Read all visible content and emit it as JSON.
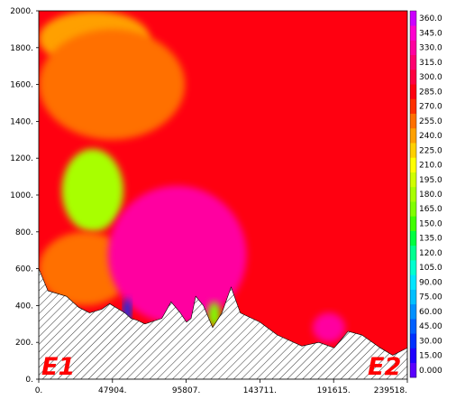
{
  "chart_data": {
    "type": "heatmap",
    "title": "",
    "xlabel": "",
    "ylabel": "",
    "xlim": [
      0,
      239518
    ],
    "ylim": [
      0,
      2000
    ],
    "x_ticks": [
      "0.",
      "47904.",
      "95807.",
      "143711.",
      "191615.",
      "239518."
    ],
    "y_ticks": [
      "0.",
      "200.",
      "400.",
      "600.",
      "800.",
      "1000.",
      "1200.",
      "1400.",
      "1600.",
      "1800.",
      "2000."
    ],
    "colorbar": {
      "range": [
        0,
        360
      ],
      "step": 15,
      "labels": [
        "0.000",
        "15.00",
        "30.00",
        "45.00",
        "60.00",
        "75.00",
        "90.00",
        "105.0",
        "120.0",
        "135.0",
        "150.0",
        "165.0",
        "180.0",
        "195.0",
        "210.0",
        "225.0",
        "240.0",
        "255.0",
        "270.0",
        "285.0",
        "300.0",
        "315.0",
        "330.0",
        "345.0",
        "360.0"
      ],
      "colors": [
        "#5a00ff",
        "#2000ff",
        "#0030ff",
        "#0060ff",
        "#0090ff",
        "#00bfff",
        "#00e5ff",
        "#00ffd0",
        "#00ff90",
        "#00ff40",
        "#40ff00",
        "#80ff00",
        "#a8ff00",
        "#d0ff00",
        "#ffff00",
        "#ffd000",
        "#ffa000",
        "#ff7000",
        "#ff3000",
        "#ff0010",
        "#ff0040",
        "#ff0070",
        "#ff00a0",
        "#ff00d0",
        "#cc00ff"
      ]
    },
    "background_value": 285,
    "features": [
      {
        "name": "upper-left-band",
        "value": 240,
        "x": [
          0,
          72000
        ],
        "y": [
          1700,
          2000
        ]
      },
      {
        "name": "upper-orange-zone",
        "value": 255,
        "x": [
          0,
          95000
        ],
        "y": [
          1300,
          1900
        ]
      },
      {
        "name": "green-core",
        "value": 180,
        "x": [
          15000,
          55000
        ],
        "y": [
          800,
          1250
        ]
      },
      {
        "name": "lower-orange-zone",
        "value": 255,
        "x": [
          0,
          60000
        ],
        "y": [
          400,
          800
        ]
      },
      {
        "name": "magenta-plume",
        "value": 330,
        "x": [
          45000,
          135000
        ],
        "y": [
          300,
          1050
        ]
      },
      {
        "name": "green-patch",
        "value": 165,
        "x": [
          110000,
          118000
        ],
        "y": [
          280,
          420
        ]
      },
      {
        "name": "blue-cells",
        "value": 30,
        "x": [
          55000,
          60000
        ],
        "y": [
          300,
          440
        ]
      },
      {
        "name": "right-magenta-patch",
        "value": 330,
        "x": [
          178000,
          199000
        ],
        "y": [
          200,
          360
        ]
      },
      {
        "name": "terrain",
        "value": null,
        "x": [
          0,
          239518
        ],
        "y": [
          0,
          600
        ]
      }
    ],
    "terrain_profile": {
      "x": [
        0,
        6000,
        18000,
        26000,
        33000,
        41000,
        46000,
        52000,
        56000,
        60000,
        64000,
        69000,
        80000,
        86000,
        92000,
        96000,
        99000,
        102000,
        107000,
        113000,
        119000,
        125000,
        131000,
        143711,
        155000,
        171000,
        182000,
        192000,
        201000,
        210000,
        222000,
        230000,
        239518
      ],
      "y": [
        600,
        480,
        450,
        390,
        360,
        380,
        410,
        380,
        360,
        330,
        320,
        300,
        330,
        420,
        360,
        310,
        330,
        450,
        400,
        280,
        360,
        500,
        360,
        310,
        240,
        180,
        200,
        170,
        260,
        240,
        170,
        130,
        170
      ]
    },
    "annotations": [
      "E1",
      "E2"
    ]
  }
}
